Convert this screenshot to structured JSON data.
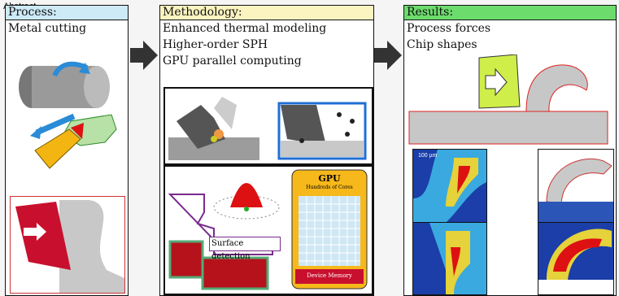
{
  "abstract_label": "Abstract",
  "panels": {
    "process": {
      "header": "Process:",
      "bullet": "Metal cutting"
    },
    "methodology": {
      "header": "Methodology:",
      "bullets": [
        "Enhanced thermal modeling",
        "Higher-order SPH",
        "GPU parallel computing"
      ]
    },
    "results": {
      "header": "Results:",
      "bullets": [
        "Process forces",
        "Chip shapes"
      ]
    }
  },
  "figure_labels": {
    "surface_detection": "Surface detection",
    "gpu_title": "GPU",
    "gpu_subtitle": "Hundreds of Cores",
    "device_memory": "Device Memory",
    "scale_bar": "100 µm"
  },
  "colors": {
    "process_header": "#cdeaf7",
    "methodology_header": "#fbf4c0",
    "results_header": "#6cdc6c",
    "arrow": "#333333"
  }
}
